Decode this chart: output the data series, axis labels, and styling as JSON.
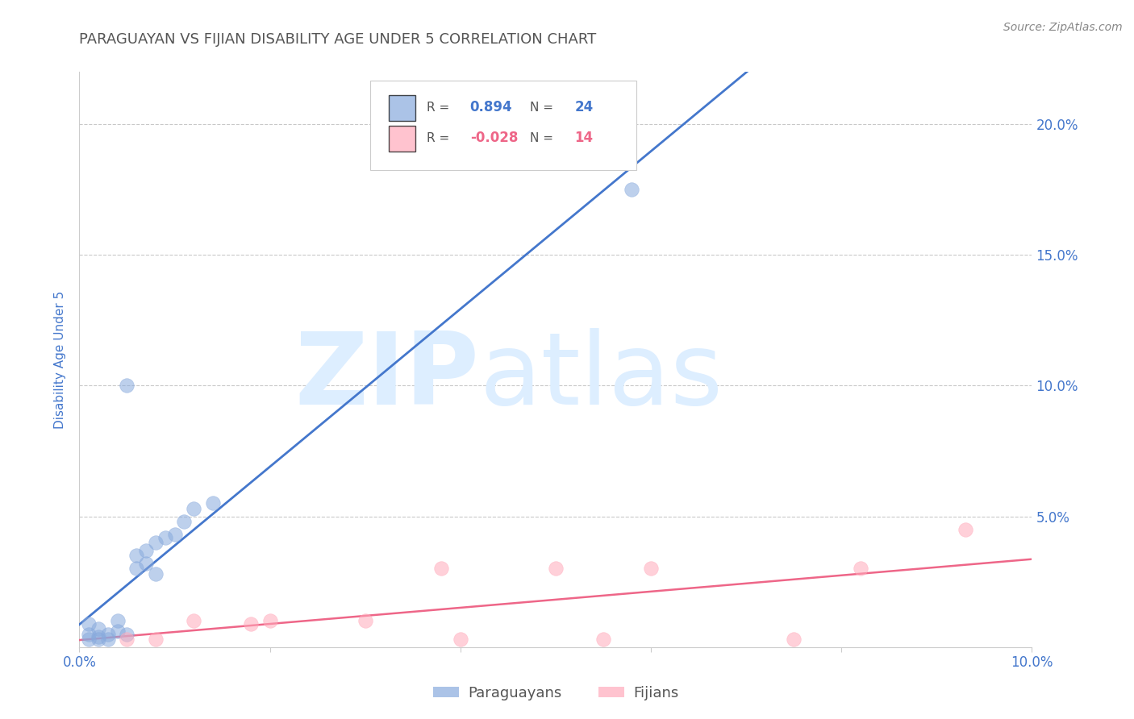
{
  "title": "PARAGUAYAN VS FIJIAN DISABILITY AGE UNDER 5 CORRELATION CHART",
  "source": "Source: ZipAtlas.com",
  "ylabel": "Disability Age Under 5",
  "xlim": [
    0.0,
    0.1
  ],
  "ylim": [
    0.0,
    0.22
  ],
  "xticks": [
    0.0,
    0.02,
    0.04,
    0.06,
    0.08,
    0.1
  ],
  "xticklabels": [
    "0.0%",
    "",
    "",
    "",
    "",
    "10.0%"
  ],
  "yticks": [
    0.0,
    0.05,
    0.1,
    0.15,
    0.2
  ],
  "yticklabels_right": [
    "",
    "5.0%",
    "10.0%",
    "15.0%",
    "20.0%"
  ],
  "paraguayan_x": [
    0.001,
    0.001,
    0.002,
    0.002,
    0.003,
    0.003,
    0.004,
    0.004,
    0.005,
    0.005,
    0.006,
    0.006,
    0.007,
    0.007,
    0.008,
    0.008,
    0.009,
    0.01,
    0.011,
    0.012,
    0.014,
    0.001,
    0.002,
    0.058
  ],
  "paraguayan_y": [
    0.005,
    0.009,
    0.004,
    0.007,
    0.003,
    0.005,
    0.006,
    0.01,
    0.005,
    0.1,
    0.03,
    0.035,
    0.032,
    0.037,
    0.028,
    0.04,
    0.042,
    0.043,
    0.048,
    0.053,
    0.055,
    0.003,
    0.003,
    0.175
  ],
  "fijian_x": [
    0.005,
    0.008,
    0.012,
    0.018,
    0.02,
    0.03,
    0.038,
    0.04,
    0.05,
    0.055,
    0.06,
    0.075,
    0.082,
    0.093
  ],
  "fijian_y": [
    0.003,
    0.003,
    0.01,
    0.009,
    0.01,
    0.01,
    0.03,
    0.003,
    0.03,
    0.003,
    0.03,
    0.003,
    0.03,
    0.045
  ],
  "paraguayan_R": 0.894,
  "paraguayan_N": 24,
  "fijian_R": -0.028,
  "fijian_N": 14,
  "blue_color": "#88AADD",
  "pink_color": "#FFAABB",
  "blue_line_color": "#4477CC",
  "pink_line_color": "#EE6688",
  "watermark_zip": "ZIP",
  "watermark_atlas": "atlas",
  "watermark_color": "#DDEEFF",
  "background_color": "#FFFFFF",
  "grid_color": "#BBBBBB",
  "title_color": "#555555",
  "axis_label_color": "#4477CC",
  "tick_color": "#4477CC",
  "legend_r_color": "#333333",
  "legend_n_color": "#333333"
}
